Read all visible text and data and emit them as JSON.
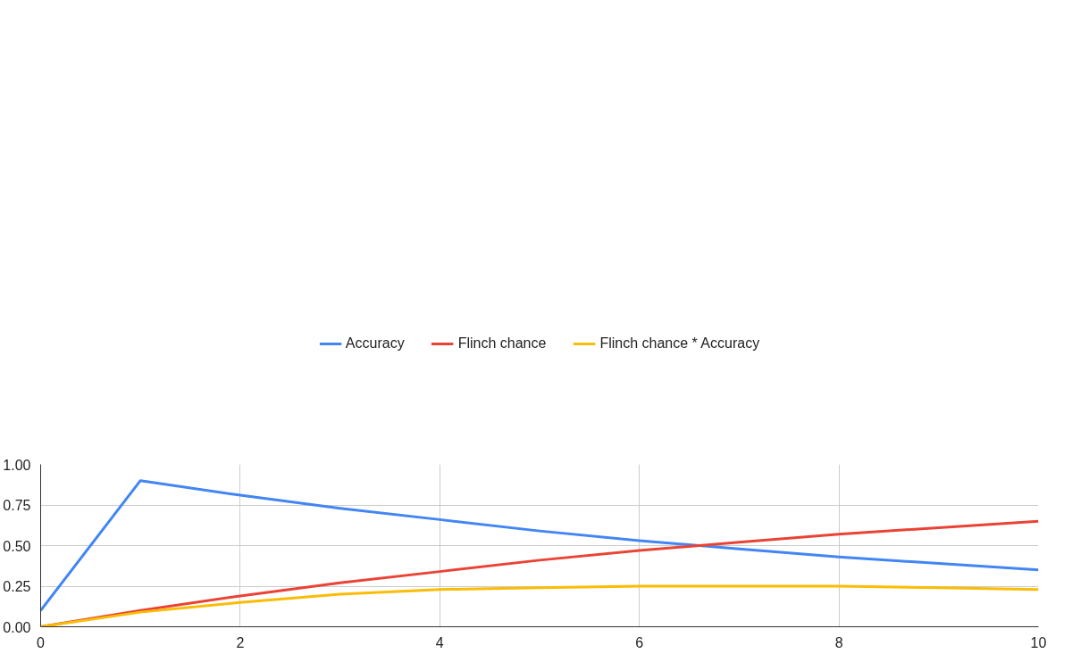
{
  "chart_data": {
    "type": "line",
    "x": [
      0,
      1,
      2,
      3,
      4,
      5,
      6,
      7,
      8,
      9,
      10
    ],
    "series": [
      {
        "name": "Accuracy",
        "color": "#4285f4",
        "values": [
          0.1,
          0.9,
          0.81,
          0.73,
          0.66,
          0.59,
          0.53,
          0.48,
          0.43,
          0.39,
          0.35
        ]
      },
      {
        "name": "Flinch chance",
        "color": "#ea4335",
        "values": [
          0,
          0.1,
          0.19,
          0.27,
          0.34,
          0.41,
          0.47,
          0.52,
          0.57,
          0.61,
          0.65
        ]
      },
      {
        "name": "Flinch chance * Accuracy",
        "color": "#fbbc04",
        "values": [
          0,
          0.09,
          0.15,
          0.2,
          0.23,
          0.24,
          0.25,
          0.25,
          0.25,
          0.24,
          0.23
        ]
      }
    ],
    "xlim": [
      0,
      10
    ],
    "xticks": [
      0,
      2,
      4,
      6,
      8,
      10
    ],
    "ylim": [
      0,
      1
    ],
    "yticks": [
      {
        "value": 0,
        "label": "0.00"
      },
      {
        "value": 0.25,
        "label": "0.25"
      },
      {
        "value": 0.5,
        "label": "0.50"
      },
      {
        "value": 0.75,
        "label": "0.75"
      },
      {
        "value": 1,
        "label": "1.00"
      }
    ],
    "grid": true,
    "legend": "top",
    "marker": "none",
    "line_style": "solid"
  }
}
